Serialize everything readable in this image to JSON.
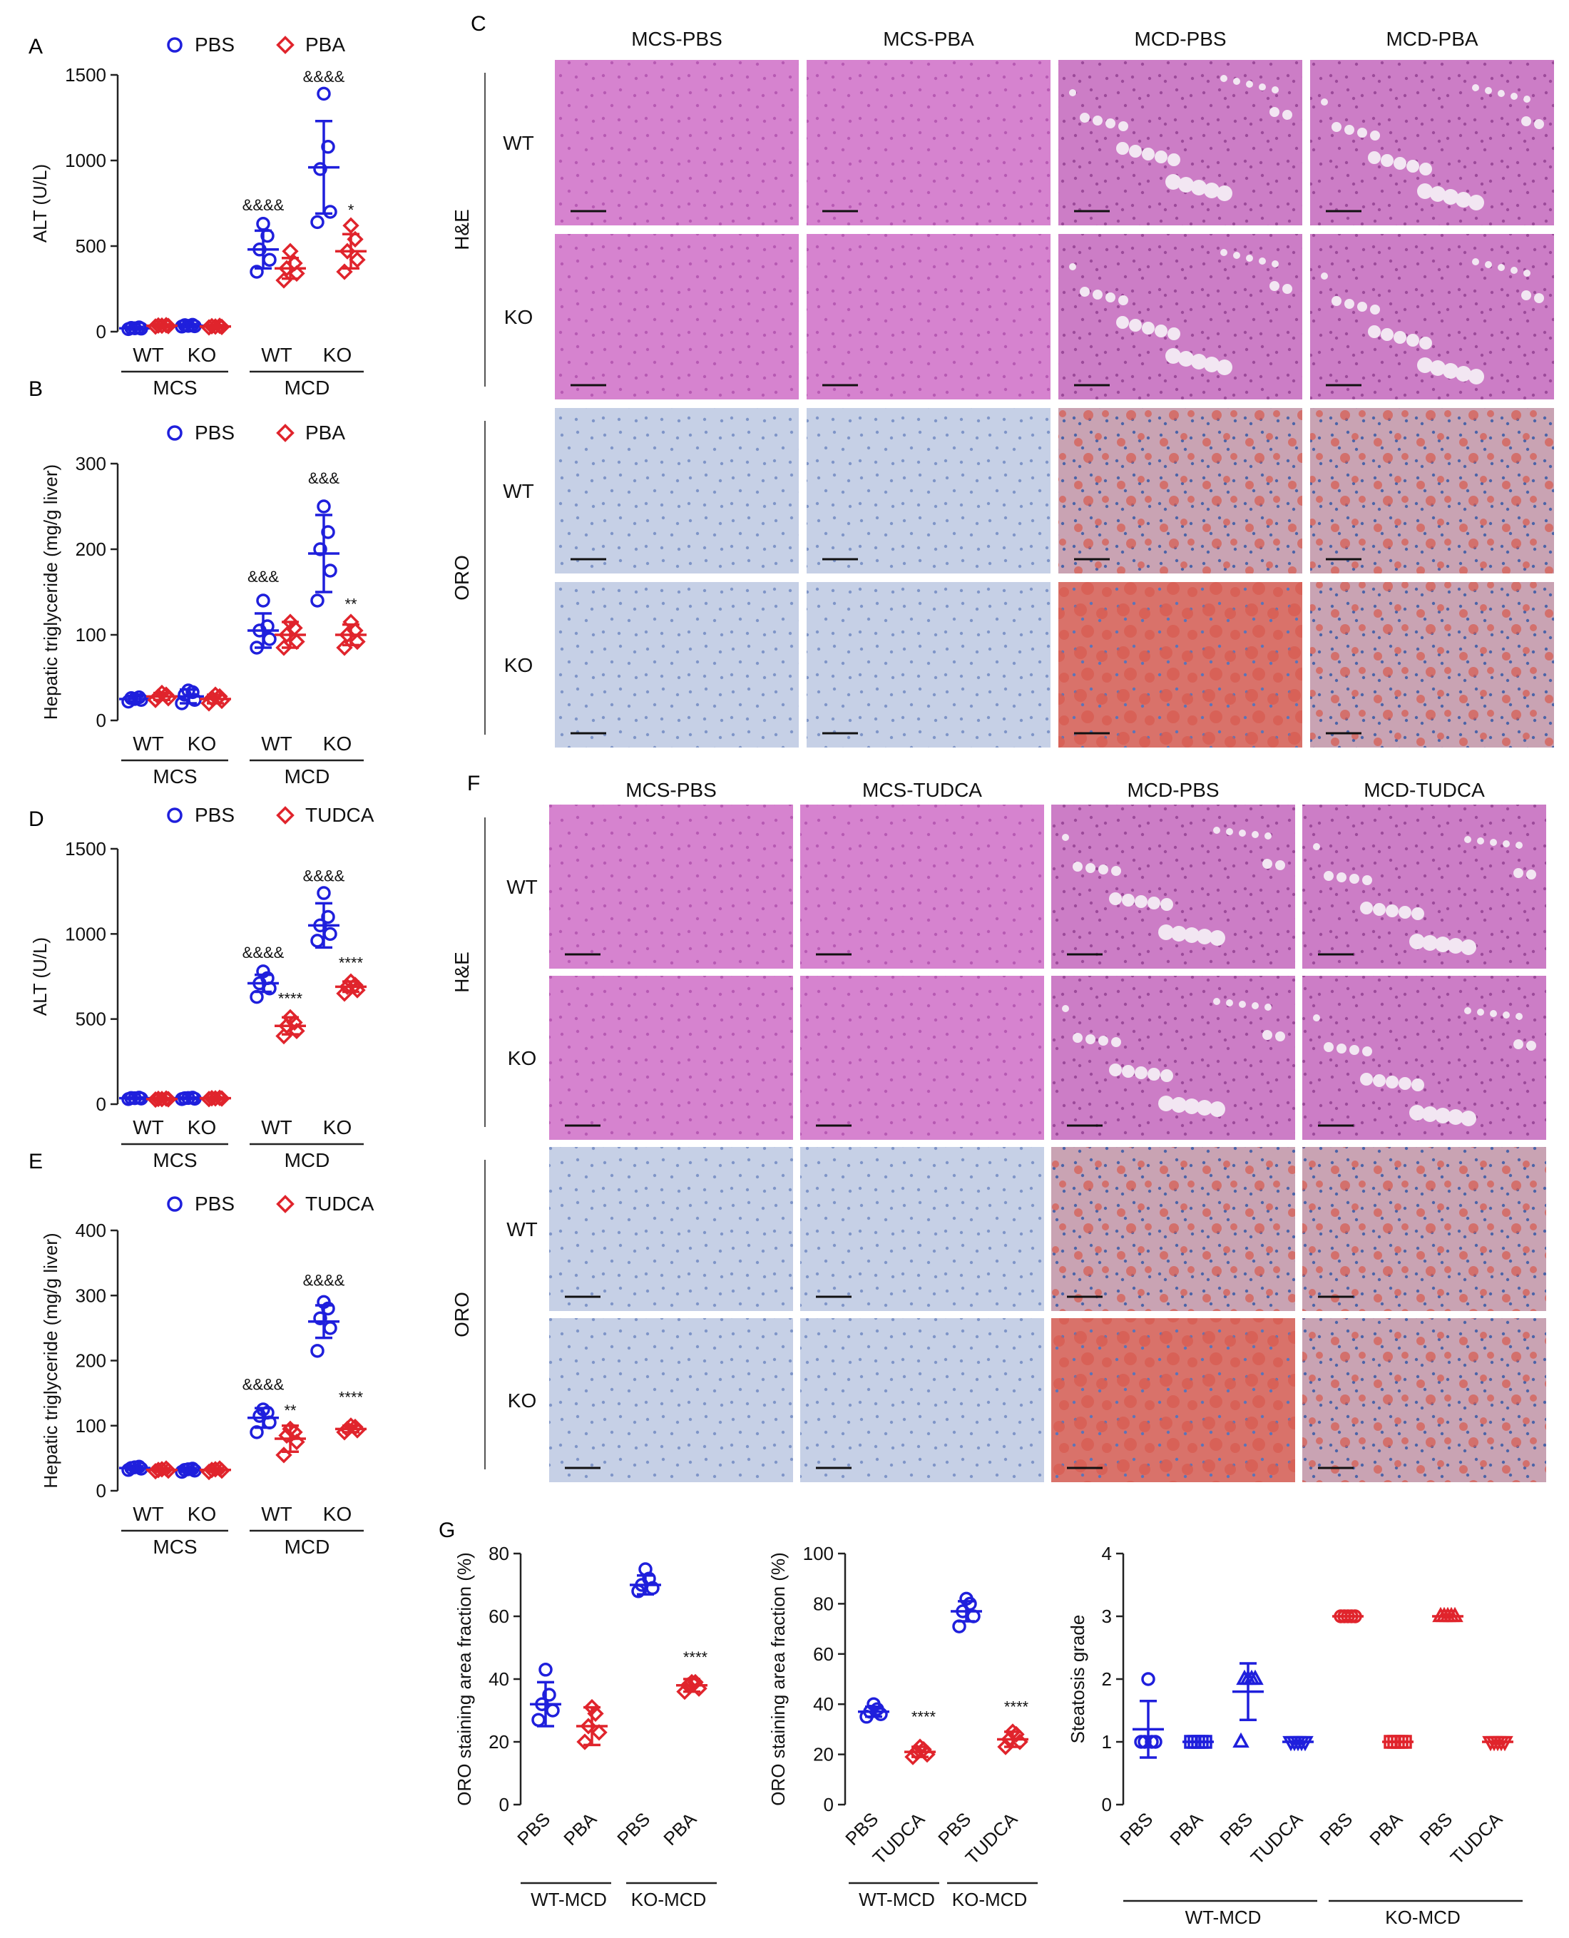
{
  "colors": {
    "pbs": "#1f1fdc",
    "treat": "#e0242c",
    "axis": "#222222",
    "he": "#d683cf",
    "he_dark": "#b75ab3",
    "oro": "#c6d0e6",
    "oro_dark": "#7f95c8",
    "oro_red": "#d85a4e"
  },
  "panel_letters": {
    "A": "A",
    "B": "B",
    "C": "C",
    "D": "D",
    "E": "E",
    "F": "F",
    "G": "G"
  },
  "micrographs": {
    "C": {
      "columns": [
        "MCS-PBS",
        "MCS-PBA",
        "MCD-PBS",
        "MCD-PBA"
      ],
      "stains": [
        "H&E",
        "ORO"
      ],
      "genotypes": [
        "WT",
        "KO"
      ]
    },
    "F": {
      "columns": [
        "MCS-PBS",
        "MCS-TUDCA",
        "MCD-PBS",
        "MCD-TUDCA"
      ],
      "stains": [
        "H&E",
        "ORO"
      ],
      "genotypes": [
        "WT",
        "KO"
      ]
    }
  },
  "chart_data": [
    {
      "id": "A",
      "type": "scatter",
      "ylabel": "ALT (U/L)",
      "ylim": [
        0,
        1500
      ],
      "yticks": [
        0,
        500,
        1000,
        1500
      ],
      "legend": [
        "PBS",
        "PBA"
      ],
      "categories": [
        "WT",
        "KO",
        "WT",
        "KO"
      ],
      "groups": [
        "MCS",
        "MCD"
      ],
      "series": [
        {
          "name": "PBS",
          "marker": "circle",
          "means": [
            20,
            35,
            480,
            960
          ],
          "sds": [
            8,
            10,
            110,
            270
          ],
          "points": [
            [
              15,
              18,
              22,
              25,
              20
            ],
            [
              30,
              32,
              38,
              40,
              34
            ],
            [
              350,
              420,
              480,
              560,
              630
            ],
            [
              640,
              700,
              950,
              1080,
              1390
            ]
          ]
        },
        {
          "name": "PBA",
          "marker": "diamond",
          "means": [
            35,
            30,
            370,
            470
          ],
          "sds": [
            8,
            8,
            60,
            100
          ],
          "points": [
            [
              30,
              33,
              36,
              38,
              35
            ],
            [
              25,
              28,
              32,
              34,
              30
            ],
            [
              300,
              340,
              370,
              400,
              470
            ],
            [
              350,
              420,
              470,
              540,
              620
            ]
          ]
        }
      ],
      "annotations": [
        {
          "series": "PBS",
          "cat": 2,
          "text": "&&&&",
          "value": 650
        },
        {
          "series": "PBS",
          "cat": 3,
          "text": "&&&&",
          "value": 1400
        },
        {
          "series": "PBA",
          "cat": 3,
          "text": "*",
          "value": 620
        }
      ]
    },
    {
      "id": "B",
      "type": "scatter",
      "ylabel": "Hepatic triglyceride (mg/g liver)",
      "ylim": [
        0,
        300
      ],
      "yticks": [
        0,
        100,
        200,
        300
      ],
      "legend": [
        "PBS",
        "PBA"
      ],
      "categories": [
        "WT",
        "KO",
        "WT",
        "KO"
      ],
      "groups": [
        "MCS",
        "MCD"
      ],
      "series": [
        {
          "name": "PBS",
          "marker": "circle",
          "means": [
            25,
            28,
            105,
            195
          ],
          "sds": [
            3,
            8,
            20,
            45
          ],
          "points": [
            [
              22,
              24,
              26,
              27,
              25
            ],
            [
              20,
              24,
              30,
              33,
              35
            ],
            [
              85,
              95,
              105,
              110,
              140
            ],
            [
              140,
              175,
              200,
              220,
              250
            ]
          ]
        },
        {
          "name": "PBA",
          "marker": "diamond",
          "means": [
            28,
            25,
            100,
            100
          ],
          "sds": [
            4,
            5,
            15,
            12
          ],
          "points": [
            [
              24,
              26,
              28,
              30,
              32
            ],
            [
              20,
              23,
              26,
              28,
              30
            ],
            [
              85,
              92,
              100,
              108,
              115
            ],
            [
              85,
              92,
              100,
              105,
              115
            ]
          ]
        }
      ],
      "annotations": [
        {
          "series": "PBS",
          "cat": 2,
          "text": "&&&",
          "value": 150
        },
        {
          "series": "PBS",
          "cat": 3,
          "text": "&&&",
          "value": 265
        },
        {
          "series": "PBA",
          "cat": 3,
          "text": "**",
          "value": 118
        }
      ]
    },
    {
      "id": "D",
      "type": "scatter",
      "ylabel": "ALT (U/L)",
      "ylim": [
        0,
        1500
      ],
      "yticks": [
        0,
        500,
        1000,
        1500
      ],
      "legend": [
        "PBS",
        "TUDCA"
      ],
      "categories": [
        "WT",
        "KO",
        "WT",
        "KO"
      ],
      "groups": [
        "MCS",
        "MCD"
      ],
      "series": [
        {
          "name": "PBS",
          "marker": "circle",
          "means": [
            35,
            35,
            710,
            1050
          ],
          "sds": [
            5,
            5,
            50,
            130
          ],
          "points": [
            [
              30,
              33,
              36,
              38,
              35
            ],
            [
              30,
              32,
              35,
              38,
              36
            ],
            [
              630,
              680,
              710,
              740,
              780
            ],
            [
              960,
              1000,
              1050,
              1100,
              1240
            ]
          ]
        },
        {
          "name": "TUDCA",
          "marker": "diamond",
          "means": [
            30,
            35,
            460,
            690
          ],
          "sds": [
            5,
            5,
            50,
            30
          ],
          "points": [
            [
              27,
              29,
              31,
              33,
              30
            ],
            [
              30,
              33,
              35,
              37,
              34
            ],
            [
              400,
              430,
              460,
              480,
              510
            ],
            [
              650,
              670,
              690,
              700,
              720
            ]
          ]
        }
      ],
      "annotations": [
        {
          "series": "PBS",
          "cat": 2,
          "text": "&&&&",
          "value": 800
        },
        {
          "series": "PBS",
          "cat": 3,
          "text": "&&&&",
          "value": 1250
        },
        {
          "series": "TUDCA",
          "cat": 2,
          "text": "****",
          "value": 530
        },
        {
          "series": "TUDCA",
          "cat": 3,
          "text": "****",
          "value": 740
        }
      ]
    },
    {
      "id": "E",
      "type": "scatter",
      "ylabel": "Hepatic triglyceride (mg/g liver)",
      "ylim": [
        0,
        400
      ],
      "yticks": [
        0,
        100,
        200,
        300,
        400
      ],
      "legend": [
        "PBS",
        "TUDCA"
      ],
      "categories": [
        "WT",
        "KO",
        "WT",
        "KO"
      ],
      "groups": [
        "MCS",
        "MCD"
      ],
      "series": [
        {
          "name": "PBS",
          "marker": "circle",
          "means": [
            35,
            32,
            112,
            260
          ],
          "sds": [
            3,
            3,
            15,
            25
          ],
          "points": [
            [
              32,
              34,
              35,
              37,
              36
            ],
            [
              29,
              31,
              32,
              34,
              33
            ],
            [
              90,
              105,
              115,
              120,
              125
            ],
            [
              215,
              250,
              265,
              280,
              290
            ]
          ]
        },
        {
          "name": "TUDCA",
          "marker": "diamond",
          "means": [
            32,
            32,
            80,
            95
          ],
          "sds": [
            3,
            3,
            20,
            5
          ],
          "points": [
            [
              30,
              31,
              32,
              34,
              33
            ],
            [
              29,
              31,
              32,
              34,
              33
            ],
            [
              55,
              75,
              85,
              90,
              95
            ],
            [
              90,
              93,
              95,
              98,
              100
            ]
          ]
        }
      ],
      "annotations": [
        {
          "series": "PBS",
          "cat": 2,
          "text": "&&&&",
          "value": 140
        },
        {
          "series": "PBS",
          "cat": 3,
          "text": "&&&&",
          "value": 300
        },
        {
          "series": "TUDCA",
          "cat": 2,
          "text": "**",
          "value": 100
        },
        {
          "series": "TUDCA",
          "cat": 3,
          "text": "****",
          "value": 120
        }
      ]
    },
    {
      "id": "G1",
      "type": "scatter",
      "ylabel": "ORO staining area fraction (%)",
      "ylim": [
        0,
        80
      ],
      "yticks": [
        0,
        20,
        40,
        60,
        80
      ],
      "xlabels": [
        "PBS",
        "PBA",
        "PBS",
        "PBA"
      ],
      "groups": [
        "WT-MCD",
        "KO-MCD"
      ],
      "markers": [
        "circle",
        "diamond",
        "circle",
        "diamond"
      ],
      "colors_idx": [
        "pbs",
        "treat",
        "pbs",
        "treat"
      ],
      "means": [
        32,
        25,
        70,
        38
      ],
      "sds": [
        7,
        6,
        3,
        2
      ],
      "points": [
        [
          27,
          30,
          32,
          35,
          43
        ],
        [
          20,
          23,
          25,
          29,
          31
        ],
        [
          68,
          69,
          70,
          72,
          75
        ],
        [
          36,
          37,
          38,
          39,
          39
        ]
      ],
      "annotations": [
        {
          "idx": 3,
          "text": "****",
          "value": 43
        }
      ]
    },
    {
      "id": "G2",
      "type": "scatter",
      "ylabel": "ORO staining area fraction (%)",
      "ylim": [
        0,
        100
      ],
      "yticks": [
        0,
        20,
        40,
        60,
        80,
        100
      ],
      "xlabels": [
        "PBS",
        "TUDCA",
        "PBS",
        "TUDCA"
      ],
      "groups": [
        "WT-MCD",
        "KO-MCD"
      ],
      "markers": [
        "circle",
        "diamond",
        "circle",
        "diamond"
      ],
      "colors_idx": [
        "pbs",
        "treat",
        "pbs",
        "treat"
      ],
      "means": [
        37,
        21,
        77,
        26
      ],
      "sds": [
        2,
        2,
        4,
        3
      ],
      "points": [
        [
          35,
          36,
          37,
          38,
          40
        ],
        [
          19,
          20,
          21,
          22,
          23
        ],
        [
          71,
          75,
          77,
          80,
          82
        ],
        [
          23,
          25,
          26,
          28,
          29
        ]
      ],
      "annotations": [
        {
          "idx": 1,
          "text": "****",
          "value": 30
        },
        {
          "idx": 3,
          "text": "****",
          "value": 34
        }
      ]
    },
    {
      "id": "G3",
      "type": "scatter",
      "ylabel": "Steatosis grade",
      "ylim": [
        0,
        4
      ],
      "yticks": [
        0,
        1,
        2,
        3,
        4
      ],
      "xlabels": [
        "PBS",
        "PBA",
        "PBS",
        "TUDCA",
        "PBS",
        "PBA",
        "PBS",
        "TUDCA"
      ],
      "groups": [
        "WT-MCD",
        "KO-MCD"
      ],
      "markers": [
        "circle",
        "square",
        "triangle",
        "triangle-down",
        "circle",
        "square",
        "triangle",
        "triangle-down"
      ],
      "colors_idx": [
        "pbs",
        "pbs",
        "pbs",
        "pbs",
        "treat",
        "treat",
        "treat",
        "treat"
      ],
      "means": [
        1.2,
        1,
        1.8,
        1,
        3,
        1,
        3,
        1
      ],
      "sds": [
        0.45,
        0,
        0.45,
        0,
        0,
        0,
        0,
        0
      ],
      "points": [
        [
          1,
          1,
          1,
          1,
          2
        ],
        [
          1,
          1,
          1,
          1,
          1
        ],
        [
          1,
          2,
          2,
          2,
          2
        ],
        [
          1,
          1,
          1,
          1,
          1
        ],
        [
          3,
          3,
          3,
          3,
          3
        ],
        [
          1,
          1,
          1,
          1,
          1
        ],
        [
          3,
          3,
          3,
          3,
          3
        ],
        [
          1,
          1,
          1,
          1,
          1
        ]
      ]
    }
  ]
}
